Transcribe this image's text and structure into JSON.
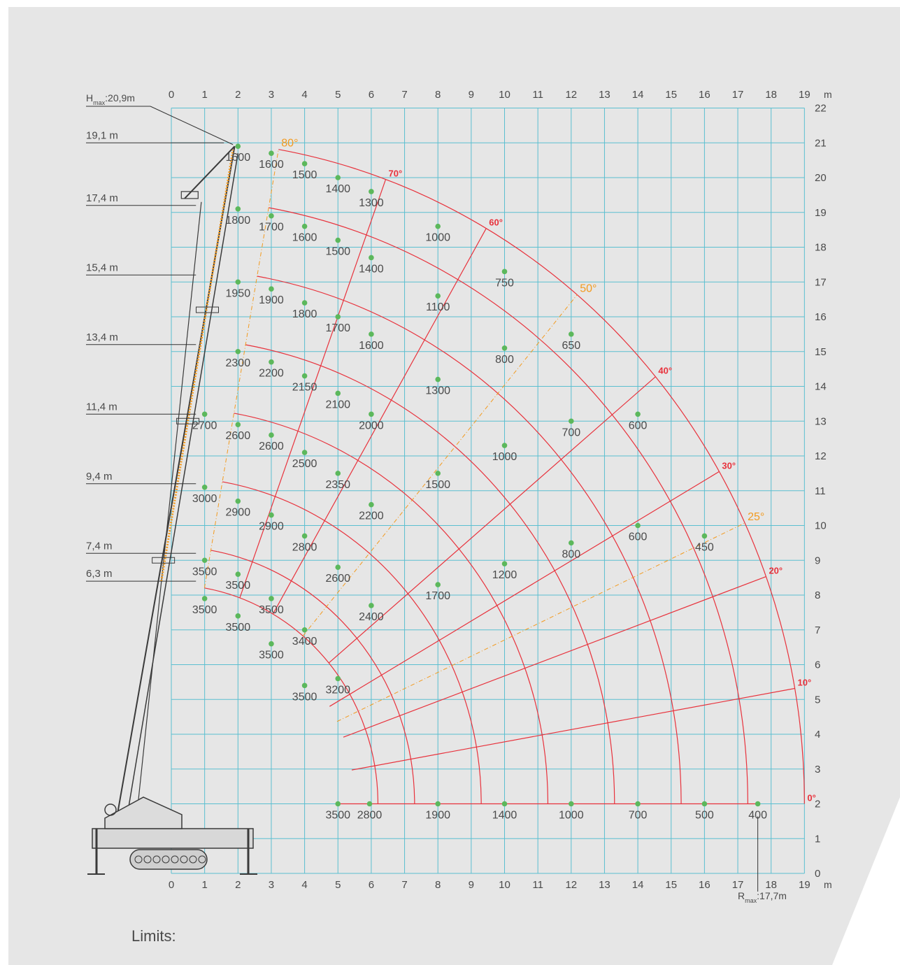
{
  "labels": {
    "hmax": "H",
    "hmax_sub": "max",
    "hmax_val": ":20,9m",
    "rmax": "R",
    "rmax_sub": "max",
    "rmax_val": ":17,7m",
    "unit": "m",
    "footer": "Limits:"
  },
  "x_ticks": [
    "0",
    "1",
    "2",
    "3",
    "4",
    "5",
    "6",
    "7",
    "8",
    "9",
    "10",
    "11",
    "12",
    "13",
    "14",
    "15",
    "16",
    "17",
    "18",
    "19"
  ],
  "y_ticks": [
    "0",
    "1",
    "2",
    "3",
    "4",
    "5",
    "6",
    "7",
    "8",
    "9",
    "10",
    "11",
    "12",
    "13",
    "14",
    "15",
    "16",
    "17",
    "18",
    "19",
    "20",
    "21",
    "22"
  ],
  "boom_lengths": [
    {
      "label": "19,1 m",
      "h": 21.0
    },
    {
      "label": "17,4 m",
      "h": 19.2
    },
    {
      "label": "15,4 m",
      "h": 17.2
    },
    {
      "label": "13,4 m",
      "h": 15.2
    },
    {
      "label": "11,4 m",
      "h": 13.2
    },
    {
      "label": "9,4 m",
      "h": 11.2
    },
    {
      "label": "7,4 m",
      "h": 9.2
    },
    {
      "label": "6,3 m",
      "h": 8.4
    }
  ],
  "angles": [
    {
      "label": "80°",
      "deg": 80,
      "style": "orange"
    },
    {
      "label": "70°",
      "deg": 70,
      "style": "red"
    },
    {
      "label": "60°",
      "deg": 60,
      "style": "red"
    },
    {
      "label": "50°",
      "deg": 50,
      "style": "orange"
    },
    {
      "label": "40°",
      "deg": 40,
      "style": "red"
    },
    {
      "label": "30°",
      "deg": 30,
      "style": "red"
    },
    {
      "label": "25°",
      "deg": 25,
      "style": "orange"
    },
    {
      "label": "20°",
      "deg": 20,
      "style": "red"
    },
    {
      "label": "10°",
      "deg": 10,
      "style": "red"
    },
    {
      "label": "0°",
      "deg": 0,
      "style": "red"
    }
  ],
  "load_points": [
    {
      "x": 2,
      "y": 20.9,
      "load": "1600"
    },
    {
      "x": 3,
      "y": 20.7,
      "load": "1600"
    },
    {
      "x": 4,
      "y": 20.4,
      "load": "1500"
    },
    {
      "x": 5,
      "y": 20.0,
      "load": "1400"
    },
    {
      "x": 6,
      "y": 19.6,
      "load": "1300"
    },
    {
      "x": 8,
      "y": 18.6,
      "load": "1000"
    },
    {
      "x": 10,
      "y": 17.3,
      "load": "750"
    },
    {
      "x": 12,
      "y": 15.5,
      "load": "650"
    },
    {
      "x": 14,
      "y": 13.2,
      "load": "600"
    },
    {
      "x": 16,
      "y": 9.7,
      "load": "450"
    },
    {
      "x": 2,
      "y": 19.1,
      "load": "1800"
    },
    {
      "x": 3,
      "y": 18.9,
      "load": "1700"
    },
    {
      "x": 4,
      "y": 18.6,
      "load": "1600"
    },
    {
      "x": 5,
      "y": 18.2,
      "load": "1500"
    },
    {
      "x": 6,
      "y": 17.7,
      "load": "1400"
    },
    {
      "x": 8,
      "y": 16.6,
      "load": "1100"
    },
    {
      "x": 10,
      "y": 15.1,
      "load": "800"
    },
    {
      "x": 12,
      "y": 13.0,
      "load": "700"
    },
    {
      "x": 14,
      "y": 10.0,
      "load": "600"
    },
    {
      "x": 2,
      "y": 17.0,
      "load": "1950"
    },
    {
      "x": 3,
      "y": 16.8,
      "load": "1900"
    },
    {
      "x": 4,
      "y": 16.4,
      "load": "1800"
    },
    {
      "x": 5,
      "y": 16.0,
      "load": "1700"
    },
    {
      "x": 6,
      "y": 15.5,
      "load": "1600"
    },
    {
      "x": 8,
      "y": 14.2,
      "load": "1300"
    },
    {
      "x": 10,
      "y": 12.3,
      "load": "1000"
    },
    {
      "x": 12,
      "y": 9.5,
      "load": "800"
    },
    {
      "x": 2,
      "y": 15.0,
      "load": "2300"
    },
    {
      "x": 3,
      "y": 14.7,
      "load": "2200"
    },
    {
      "x": 4,
      "y": 14.3,
      "load": "2150"
    },
    {
      "x": 5,
      "y": 13.8,
      "load": "2100"
    },
    {
      "x": 6,
      "y": 13.2,
      "load": "2000"
    },
    {
      "x": 8,
      "y": 11.5,
      "load": "1500"
    },
    {
      "x": 10,
      "y": 8.9,
      "load": "1200"
    },
    {
      "x": 1,
      "y": 13.2,
      "load": "2700"
    },
    {
      "x": 2,
      "y": 12.9,
      "load": "2600"
    },
    {
      "x": 3,
      "y": 12.6,
      "load": "2600"
    },
    {
      "x": 4,
      "y": 12.1,
      "load": "2500"
    },
    {
      "x": 5,
      "y": 11.5,
      "load": "2350"
    },
    {
      "x": 6,
      "y": 10.6,
      "load": "2200"
    },
    {
      "x": 8,
      "y": 8.3,
      "load": "1700"
    },
    {
      "x": 1,
      "y": 11.1,
      "load": "3000"
    },
    {
      "x": 2,
      "y": 10.7,
      "load": "2900"
    },
    {
      "x": 3,
      "y": 10.3,
      "load": "2900"
    },
    {
      "x": 4,
      "y": 9.7,
      "load": "2800"
    },
    {
      "x": 5,
      "y": 8.8,
      "load": "2600"
    },
    {
      "x": 6,
      "y": 7.7,
      "load": "2400"
    },
    {
      "x": 1,
      "y": 9.0,
      "load": "3500"
    },
    {
      "x": 2,
      "y": 8.6,
      "load": "3500"
    },
    {
      "x": 3,
      "y": 7.9,
      "load": "3500"
    },
    {
      "x": 4,
      "y": 7.0,
      "load": "3400"
    },
    {
      "x": 5,
      "y": 5.6,
      "load": "3200"
    },
    {
      "x": 1,
      "y": 7.9,
      "load": "3500"
    },
    {
      "x": 2,
      "y": 7.4,
      "load": "3500"
    },
    {
      "x": 3,
      "y": 6.6,
      "load": "3500"
    },
    {
      "x": 4,
      "y": 5.4,
      "load": "3500"
    },
    {
      "x": 5,
      "y": 2.0,
      "load": "3500"
    },
    {
      "x": 5.95,
      "y": 2.0,
      "load": "2800"
    },
    {
      "x": 8,
      "y": 2.0,
      "load": "1900"
    },
    {
      "x": 10,
      "y": 2.0,
      "load": "1400"
    },
    {
      "x": 12,
      "y": 2.0,
      "load": "1000"
    },
    {
      "x": 14,
      "y": 2.0,
      "load": "700"
    },
    {
      "x": 16,
      "y": 2.0,
      "load": "500"
    },
    {
      "x": 17.6,
      "y": 2.0,
      "load": "400"
    }
  ],
  "colors": {
    "grid": "#5bbfd0",
    "curve": "#e8323c",
    "point": "#5cb85c",
    "orange": "#f39a1e",
    "text": "#4a4a4a"
  }
}
